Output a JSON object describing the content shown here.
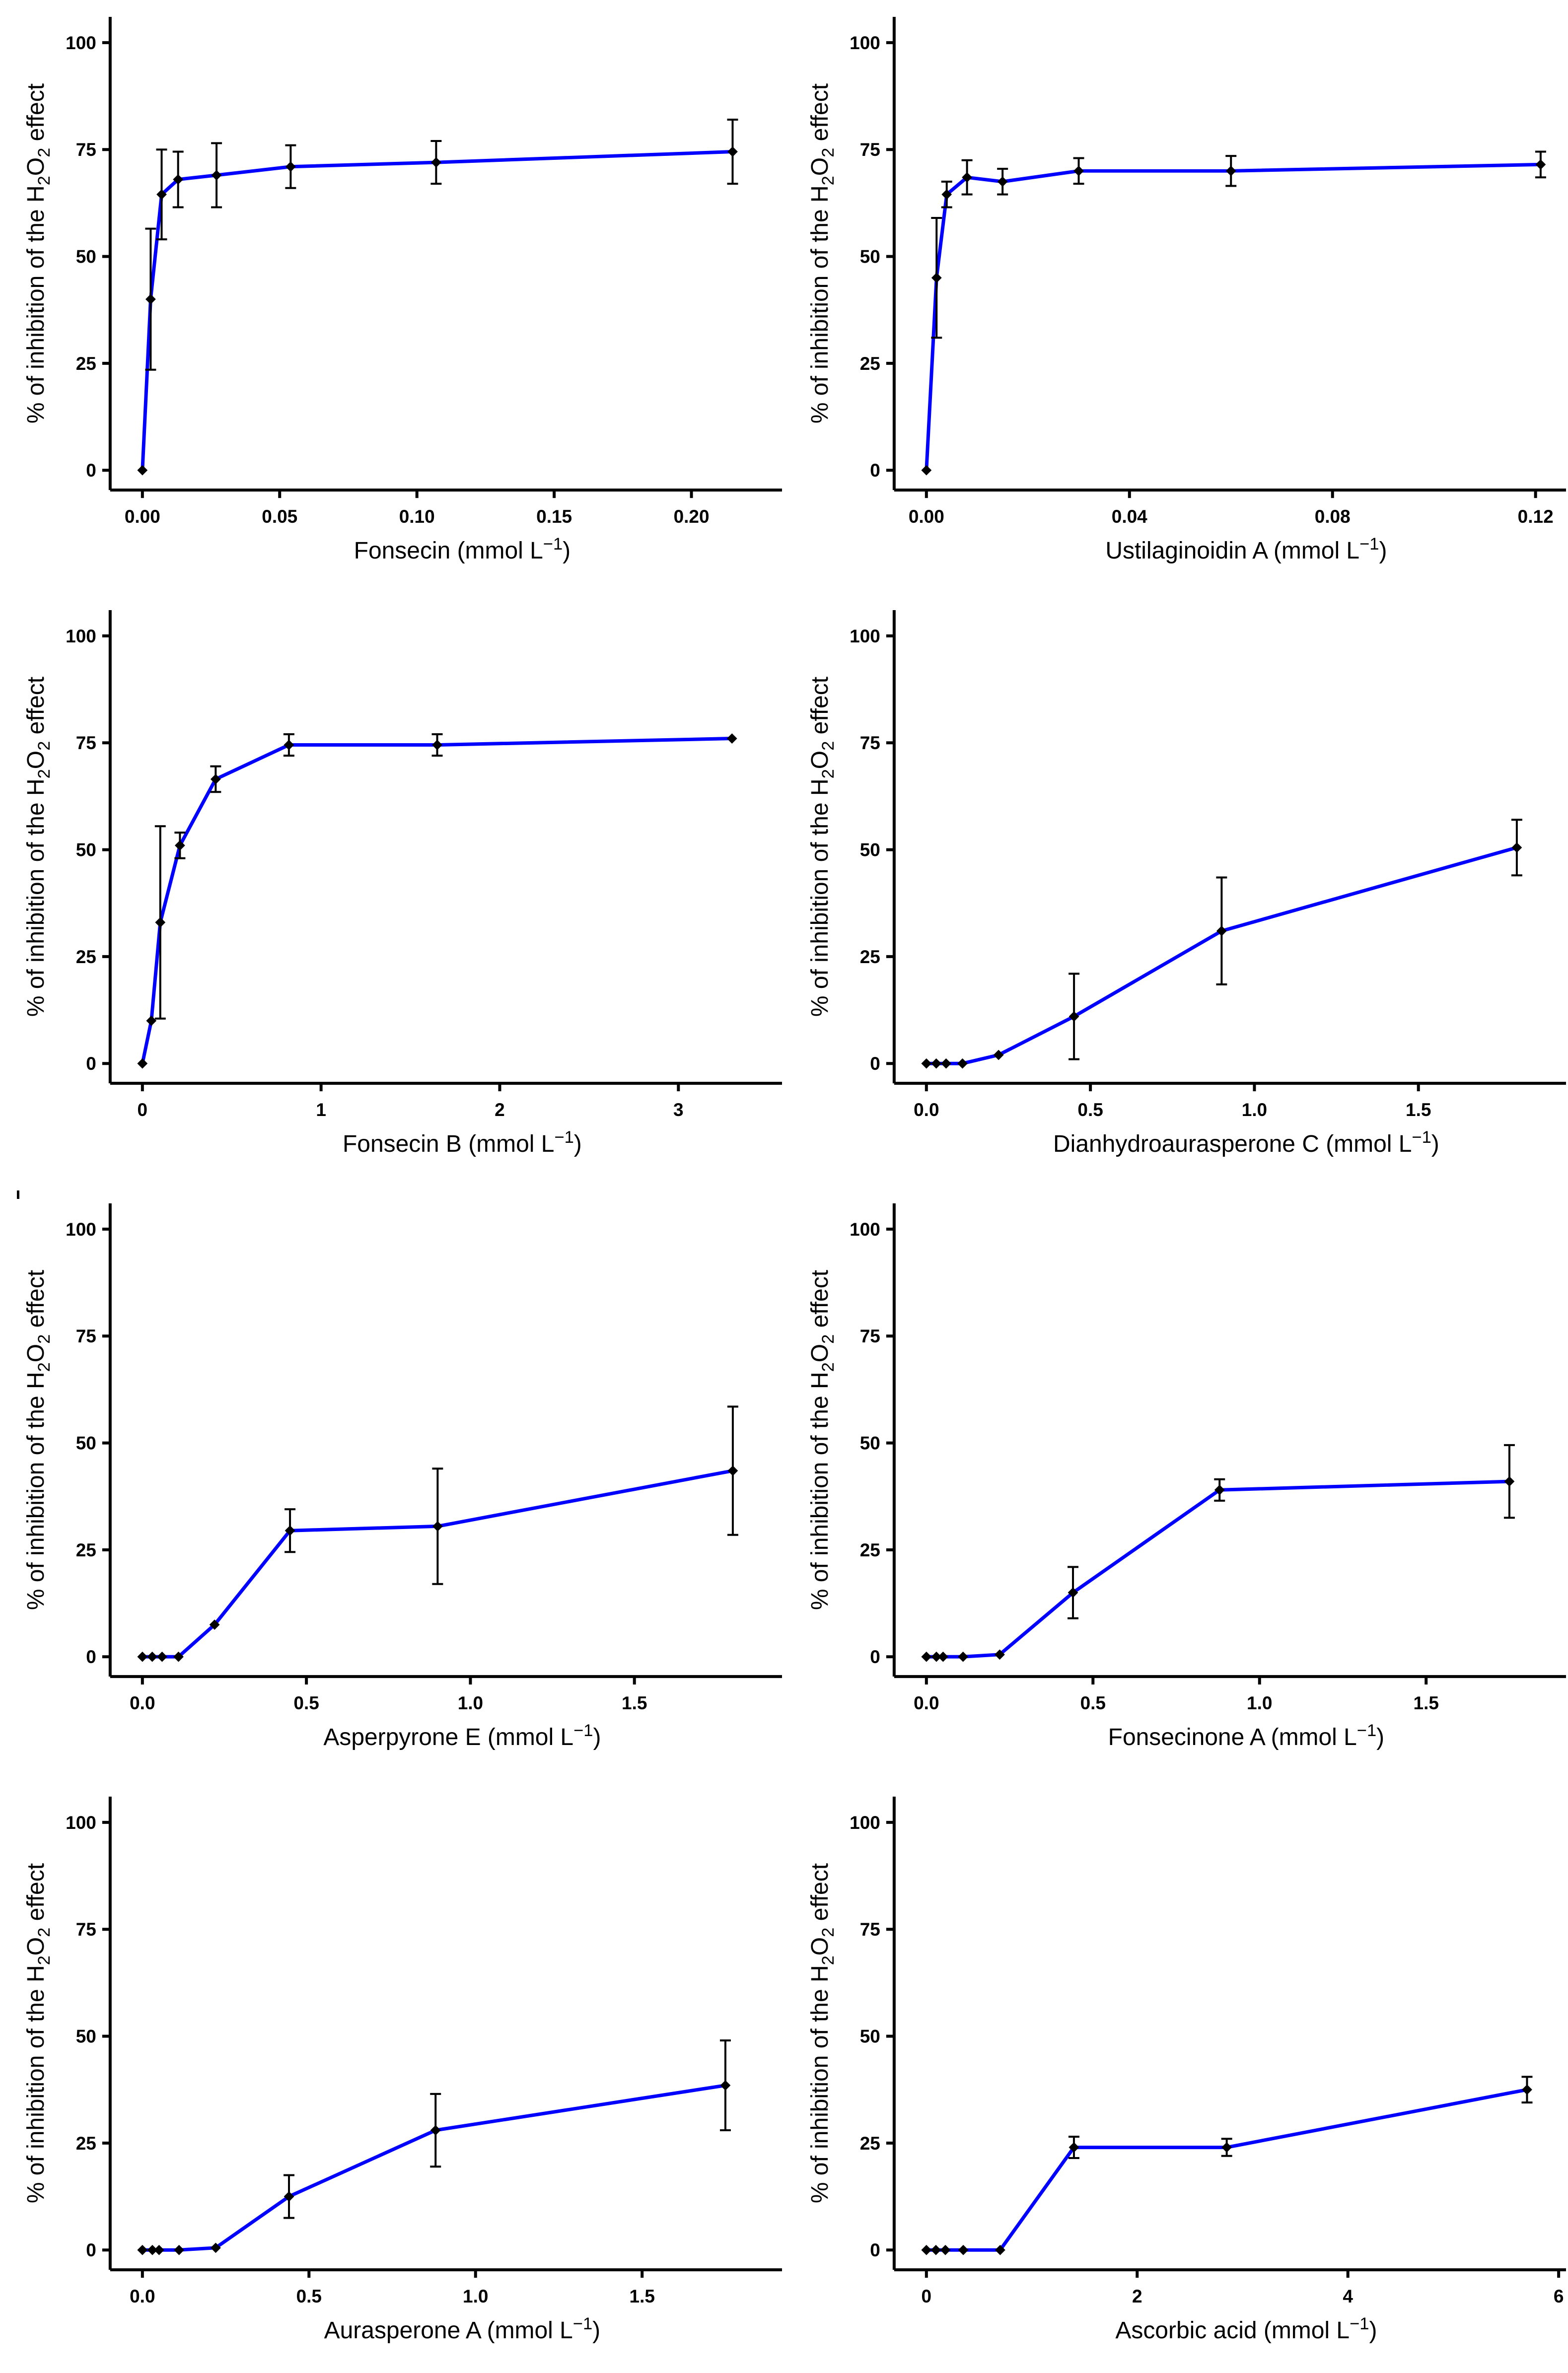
{
  "page": {
    "background": "#ffffff",
    "stray_mark_glyph": "|"
  },
  "style": {
    "line_color": "#0000ff",
    "point_color": "#000000",
    "axis_color": "#000000",
    "text_color": "#000000"
  },
  "labels": {
    "ylabel_text": "% of inhibition of the H₂O₂ effect",
    "ylabel_parts": [
      {
        "t": "% of inhibition of the H"
      },
      {
        "t": "2",
        "s": "sub"
      },
      {
        "t": "O"
      },
      {
        "t": "2",
        "s": "sub"
      },
      {
        "t": " effect"
      }
    ],
    "unit_prefix": "(mmol L",
    "unit_exponent": "−1",
    "unit_suffix": ")"
  },
  "chart_data": [
    {
      "type": "line",
      "compound": "Fonsecin",
      "xlabel_text": "Fonsecin (mmol L⁻¹)",
      "x_axis_max": 0.233,
      "x_ticks": {
        "values": [
          0,
          0.05,
          0.1,
          0.15,
          0.2
        ],
        "labels": [
          "0.00",
          "0.05",
          "0.10",
          "0.15",
          "0.20"
        ]
      },
      "y_ticks": {
        "values": [
          0,
          25,
          50,
          75,
          100
        ],
        "labels": [
          "0",
          "25",
          "50",
          "75",
          "100"
        ]
      },
      "ylim": [
        0,
        100
      ],
      "points": [
        {
          "x": 0,
          "y": 0,
          "err": 0
        },
        {
          "x": 0.003,
          "y": 40,
          "err": 16.5
        },
        {
          "x": 0.007,
          "y": 64.5,
          "err": 10.5
        },
        {
          "x": 0.013,
          "y": 68,
          "err": 6.5
        },
        {
          "x": 0.027,
          "y": 69,
          "err": 7.5
        },
        {
          "x": 0.054,
          "y": 71,
          "err": 5
        },
        {
          "x": 0.107,
          "y": 72,
          "err": 5
        },
        {
          "x": 0.215,
          "y": 74.5,
          "err": 7.5
        }
      ]
    },
    {
      "type": "line",
      "compound": "Ustilaginoidin A",
      "xlabel_text": "Ustilaginoidin A (mmol L⁻¹)",
      "x_axis_max": 0.126,
      "x_ticks": {
        "values": [
          0,
          0.04,
          0.08,
          0.12
        ],
        "labels": [
          "0.00",
          "0.04",
          "0.08",
          "0.12"
        ]
      },
      "y_ticks": {
        "values": [
          0,
          25,
          50,
          75,
          100
        ],
        "labels": [
          "0",
          "25",
          "50",
          "75",
          "100"
        ]
      },
      "ylim": [
        0,
        100
      ],
      "points": [
        {
          "x": 0,
          "y": 0,
          "err": 0
        },
        {
          "x": 0.002,
          "y": 45,
          "err": 14
        },
        {
          "x": 0.004,
          "y": 64.5,
          "err": 3
        },
        {
          "x": 0.008,
          "y": 68.5,
          "err": 4
        },
        {
          "x": 0.015,
          "y": 67.5,
          "err": 3
        },
        {
          "x": 0.03,
          "y": 70,
          "err": 3
        },
        {
          "x": 0.06,
          "y": 70,
          "err": 3.5
        },
        {
          "x": 0.121,
          "y": 71.5,
          "err": 3
        }
      ]
    },
    {
      "type": "line",
      "compound": "Fonsecin B",
      "xlabel_text": "Fonsecin B (mmol L⁻¹)",
      "x_axis_max": 3.58,
      "x_ticks": {
        "values": [
          0,
          1,
          2,
          3
        ],
        "labels": [
          "0",
          "1",
          "2",
          "3"
        ]
      },
      "y_ticks": {
        "values": [
          0,
          25,
          50,
          75,
          100
        ],
        "labels": [
          "0",
          "25",
          "50",
          "75",
          "100"
        ]
      },
      "ylim": [
        0,
        100
      ],
      "points": [
        {
          "x": 0,
          "y": 0,
          "err": 0
        },
        {
          "x": 0.05,
          "y": 10,
          "err": 0
        },
        {
          "x": 0.1,
          "y": 33,
          "err": 22.5
        },
        {
          "x": 0.21,
          "y": 51,
          "err": 3
        },
        {
          "x": 0.41,
          "y": 66.5,
          "err": 3
        },
        {
          "x": 0.82,
          "y": 74.5,
          "err": 2.5
        },
        {
          "x": 1.65,
          "y": 74.5,
          "err": 2.5
        },
        {
          "x": 3.3,
          "y": 76,
          "err": 0
        }
      ]
    },
    {
      "type": "line",
      "compound": "Dianhydroaurasperone C",
      "xlabel_text": "Dianhydroaurasperone C (mmol L⁻¹)",
      "x_axis_max": 1.95,
      "x_ticks": {
        "values": [
          0,
          0.5,
          1.0,
          1.5
        ],
        "labels": [
          "0.0",
          "0.5",
          "1.0",
          "1.5"
        ]
      },
      "y_ticks": {
        "values": [
          0,
          25,
          50,
          75,
          100
        ],
        "labels": [
          "0",
          "25",
          "50",
          "75",
          "100"
        ]
      },
      "ylim": [
        0,
        100
      ],
      "points": [
        {
          "x": 0,
          "y": 0,
          "err": 0
        },
        {
          "x": 0.03,
          "y": 0,
          "err": 0
        },
        {
          "x": 0.06,
          "y": 0,
          "err": 0
        },
        {
          "x": 0.11,
          "y": 0,
          "err": 0
        },
        {
          "x": 0.22,
          "y": 2,
          "err": 0
        },
        {
          "x": 0.45,
          "y": 11,
          "err": 10
        },
        {
          "x": 0.9,
          "y": 31,
          "err": 12.5
        },
        {
          "x": 1.8,
          "y": 50.5,
          "err": 6.5
        }
      ]
    },
    {
      "type": "line",
      "compound": "Asperpyrone E",
      "xlabel_text": "Asperpyrone E (mmol L⁻¹)",
      "x_axis_max": 1.95,
      "x_ticks": {
        "values": [
          0,
          0.5,
          1.0,
          1.5
        ],
        "labels": [
          "0.0",
          "0.5",
          "1.0",
          "1.5"
        ]
      },
      "y_ticks": {
        "values": [
          0,
          25,
          50,
          75,
          100
        ],
        "labels": [
          "0",
          "25",
          "50",
          "75",
          "100"
        ]
      },
      "ylim": [
        0,
        100
      ],
      "points": [
        {
          "x": 0,
          "y": 0,
          "err": 0
        },
        {
          "x": 0.03,
          "y": 0,
          "err": 0
        },
        {
          "x": 0.06,
          "y": 0,
          "err": 0
        },
        {
          "x": 0.11,
          "y": 0,
          "err": 0
        },
        {
          "x": 0.22,
          "y": 7.5,
          "err": 0
        },
        {
          "x": 0.45,
          "y": 29.5,
          "err": 5
        },
        {
          "x": 0.9,
          "y": 30.5,
          "err": 13.5
        },
        {
          "x": 1.8,
          "y": 43.5,
          "err": 15
        }
      ]
    },
    {
      "type": "line",
      "compound": "Fonsecinone A",
      "xlabel_text": "Fonsecinone A (mmol L⁻¹)",
      "x_axis_max": 1.92,
      "x_ticks": {
        "values": [
          0,
          0.5,
          1.0,
          1.5
        ],
        "labels": [
          "0.0",
          "0.5",
          "1.0",
          "1.5"
        ]
      },
      "y_ticks": {
        "values": [
          0,
          25,
          50,
          75,
          100
        ],
        "labels": [
          "0",
          "25",
          "50",
          "75",
          "100"
        ]
      },
      "ylim": [
        0,
        100
      ],
      "points": [
        {
          "x": 0,
          "y": 0,
          "err": 0
        },
        {
          "x": 0.03,
          "y": 0,
          "err": 0
        },
        {
          "x": 0.05,
          "y": 0,
          "err": 0
        },
        {
          "x": 0.11,
          "y": 0,
          "err": 0
        },
        {
          "x": 0.22,
          "y": 0.5,
          "err": 0
        },
        {
          "x": 0.44,
          "y": 15,
          "err": 6
        },
        {
          "x": 0.88,
          "y": 39,
          "err": 2.5
        },
        {
          "x": 1.75,
          "y": 41,
          "err": 8.5
        }
      ]
    },
    {
      "type": "line",
      "compound": "Aurasperone A",
      "xlabel_text": "Aurasperone A (mmol L⁻¹)",
      "x_axis_max": 1.92,
      "x_ticks": {
        "values": [
          0,
          0.5,
          1.0,
          1.5
        ],
        "labels": [
          "0.0",
          "0.5",
          "1.0",
          "1.5"
        ]
      },
      "y_ticks": {
        "values": [
          0,
          25,
          50,
          75,
          100
        ],
        "labels": [
          "0",
          "25",
          "50",
          "75",
          "100"
        ]
      },
      "ylim": [
        0,
        100
      ],
      "points": [
        {
          "x": 0,
          "y": 0,
          "err": 0
        },
        {
          "x": 0.03,
          "y": 0,
          "err": 0
        },
        {
          "x": 0.05,
          "y": 0,
          "err": 0
        },
        {
          "x": 0.11,
          "y": 0,
          "err": 0
        },
        {
          "x": 0.22,
          "y": 0.5,
          "err": 0
        },
        {
          "x": 0.44,
          "y": 12.5,
          "err": 5
        },
        {
          "x": 0.88,
          "y": 28,
          "err": 8.5
        },
        {
          "x": 1.75,
          "y": 38.5,
          "err": 10.5
        }
      ]
    },
    {
      "type": "line",
      "compound": "Ascorbic acid",
      "xlabel_text": "Ascorbic acid (mmol L⁻¹)",
      "x_axis_max": 6.07,
      "x_ticks": {
        "values": [
          0,
          2,
          4,
          6
        ],
        "labels": [
          "0",
          "2",
          "4",
          "6"
        ]
      },
      "y_ticks": {
        "values": [
          0,
          25,
          50,
          75,
          100
        ],
        "labels": [
          "0",
          "25",
          "50",
          "75",
          "100"
        ]
      },
      "ylim": [
        0,
        100
      ],
      "points": [
        {
          "x": 0,
          "y": 0,
          "err": 0
        },
        {
          "x": 0.09,
          "y": 0,
          "err": 0
        },
        {
          "x": 0.18,
          "y": 0,
          "err": 0
        },
        {
          "x": 0.35,
          "y": 0,
          "err": 0
        },
        {
          "x": 0.7,
          "y": 0,
          "err": 0
        },
        {
          "x": 1.4,
          "y": 24,
          "err": 2.5
        },
        {
          "x": 2.85,
          "y": 24,
          "err": 2
        },
        {
          "x": 5.7,
          "y": 37.5,
          "err": 3
        }
      ]
    }
  ]
}
